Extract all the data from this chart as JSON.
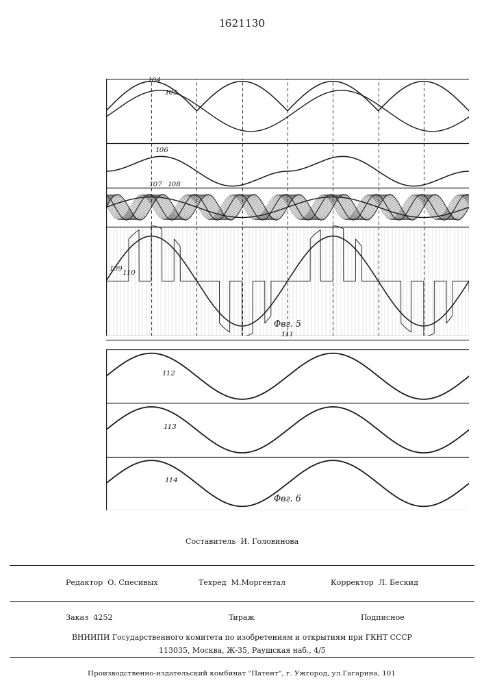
{
  "title": "1621130",
  "fig5_label": "Φвг. 5",
  "fig6_label": "Φвг. 6",
  "label_104": "104",
  "label_105": "105",
  "label_106": "106",
  "label_107": "107",
  "label_108": "108",
  "label_109": "109",
  "label_110": "110",
  "label_111": "111",
  "label_112": "112",
  "label_113": "113",
  "label_114": "114",
  "line_color": "#1a1a1a",
  "footer_sestavitel": "Составитель  И. Головинова",
  "footer_redaktor": "Редактор  О. Спесивых",
  "footer_tehred": "Техред  М.Моргентал",
  "footer_korrektor": "Корректор  Л. Бескид",
  "footer_zakaz": "Заказ  4252",
  "footer_tirazh": "Тираж",
  "footer_podpisnoe": "Подписное",
  "footer_vniipи": "ВНИИПИ Государственного комитета по изобретениям и открытиям при ГКНТ СССР",
  "footer_addr": "113035, Москва, Ж-35, Раушская наб., 4/5",
  "footer_patent": "Производственно-издательский комбинат \"Патент\", г. Ужгород, ул.Гагарина, 101"
}
